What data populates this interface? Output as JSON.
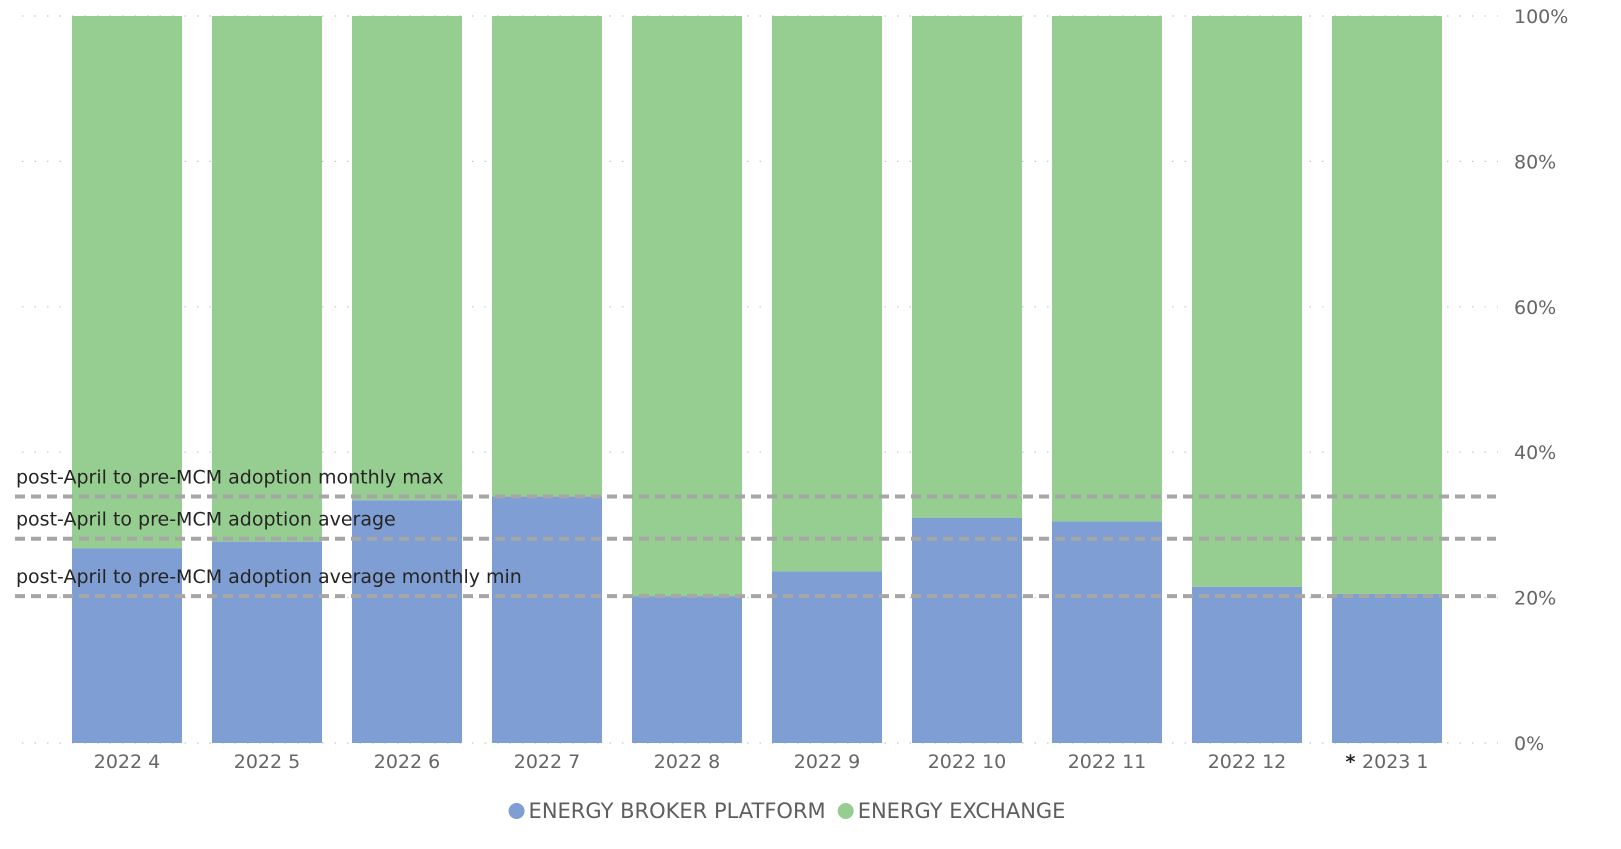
{
  "chart_data": {
    "type": "bar",
    "stacked": "100%",
    "categories": [
      "2022 4",
      "2022 5",
      "2022 6",
      "2022 7",
      "2022 8",
      "2022 9",
      "2022 10",
      "2022 11",
      "2022 12",
      "2023 1"
    ],
    "category_markers": [
      "",
      "",
      "",
      "",
      "",
      "",
      "",
      "",
      "",
      "*"
    ],
    "series": [
      {
        "name": "ENERGY BROKER PLATFORM",
        "color": "#7f9ed4",
        "values": [
          26.8,
          27.7,
          33.4,
          33.9,
          20.2,
          23.6,
          31.0,
          30.5,
          21.5,
          20.5
        ]
      },
      {
        "name": "ENERGY EXCHANGE",
        "color": "#96ce91",
        "values": [
          73.2,
          72.3,
          66.6,
          66.1,
          79.8,
          76.4,
          69.0,
          69.5,
          78.5,
          79.5
        ]
      }
    ],
    "y_axis": {
      "position": "right",
      "ylim": [
        0,
        100
      ],
      "ticks": [
        0,
        20,
        40,
        60,
        80,
        100
      ],
      "tick_labels": [
        "0%",
        "20%",
        "40%",
        "60%",
        "80%",
        "100%"
      ],
      "grid": "dotted"
    },
    "reference_lines": [
      {
        "label": "post-April to pre-MCM adoption monthly max",
        "value": 33.9
      },
      {
        "label": "post-April to pre-MCM adoption average",
        "value": 28.1
      },
      {
        "label": "post-April to pre-MCM adoption average monthly min",
        "value": 20.2
      }
    ],
    "reference_line_color": "#a6a6a6",
    "legend_position": "bottom-center",
    "title": "",
    "xlabel": "",
    "ylabel": ""
  }
}
